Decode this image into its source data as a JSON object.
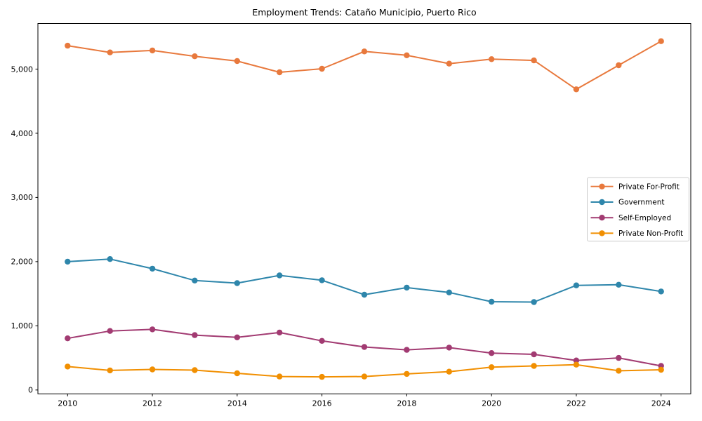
{
  "figure": {
    "title": "Employment Trends: Cataño Municipio, Puerto Rico"
  },
  "chart_data": {
    "type": "line",
    "title": "Employment Trends: Cataño Municipio, Puerto Rico",
    "xlabel": "",
    "ylabel": "",
    "grid": false,
    "legend_position": "center right",
    "legend_border_color": "#cccccc",
    "axis_color": "#000000",
    "x": [
      2010,
      2011,
      2012,
      2013,
      2014,
      2015,
      2016,
      2017,
      2018,
      2019,
      2020,
      2021,
      2022,
      2023,
      2024
    ],
    "x_ticks": [
      2010,
      2012,
      2014,
      2016,
      2018,
      2020,
      2022,
      2024
    ],
    "x_tick_labels": [
      "2010",
      "2012",
      "2014",
      "2016",
      "2018",
      "2020",
      "2022",
      "2024"
    ],
    "y_ticks": [
      0,
      1000,
      2000,
      3000,
      4000,
      5000
    ],
    "y_tick_labels": [
      "0",
      "1,000",
      "2,000",
      "3,000",
      "4,000",
      "5,000"
    ],
    "xlim": [
      2009.3,
      2024.7
    ],
    "ylim": [
      -60,
      5710
    ],
    "series": [
      {
        "name": "Private For-Profit",
        "color": "#E8793D",
        "values": [
          5365,
          5260,
          5290,
          5200,
          5125,
          4950,
          5005,
          5275,
          5215,
          5085,
          5155,
          5135,
          4685,
          5060,
          5435
        ]
      },
      {
        "name": "Government",
        "color": "#2E86AB",
        "values": [
          2000,
          2040,
          1890,
          1705,
          1665,
          1785,
          1710,
          1485,
          1595,
          1520,
          1375,
          1370,
          1630,
          1640,
          1535
        ]
      },
      {
        "name": "Self-Employed",
        "color": "#A23B72",
        "values": [
          805,
          920,
          945,
          855,
          820,
          895,
          765,
          670,
          625,
          660,
          575,
          555,
          460,
          500,
          375
        ]
      },
      {
        "name": "Private Non-Profit",
        "color": "#F18F01",
        "values": [
          365,
          305,
          320,
          310,
          260,
          210,
          205,
          210,
          250,
          285,
          355,
          375,
          395,
          300,
          315
        ]
      }
    ]
  }
}
